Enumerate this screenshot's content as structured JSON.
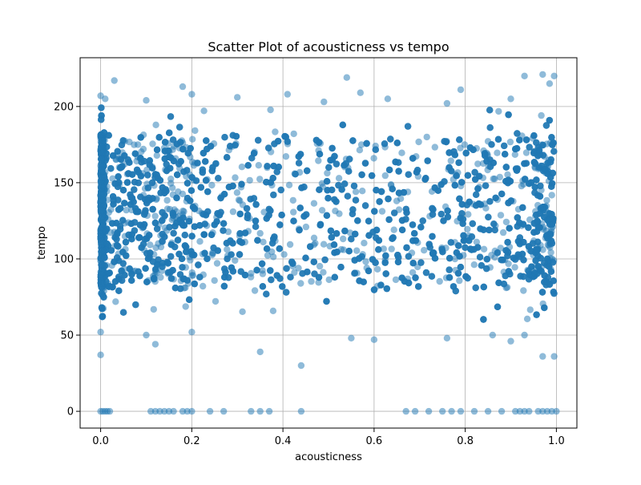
{
  "chart_data": {
    "type": "scatter",
    "title": "Scatter Plot of acousticness vs tempo",
    "xlabel": "acousticness",
    "ylabel": "tempo",
    "xlim": [
      -0.045,
      1.045
    ],
    "ylim": [
      -11,
      232
    ],
    "xticks": [
      0.0,
      0.2,
      0.4,
      0.6,
      0.8,
      1.0
    ],
    "xtick_labels": [
      "0.0",
      "0.2",
      "0.4",
      "0.6",
      "0.8",
      "1.0"
    ],
    "yticks": [
      0,
      50,
      100,
      150,
      200
    ],
    "ytick_labels": [
      "0",
      "50",
      "100",
      "150",
      "200"
    ],
    "grid": true,
    "marker_color": "#1f77b4",
    "marker_alpha": 0.5,
    "series": [
      {
        "points": [
          [
            0.0,
            0
          ],
          [
            0.005,
            0
          ],
          [
            0.01,
            0
          ],
          [
            0.015,
            0
          ],
          [
            0.02,
            0
          ],
          [
            0.11,
            0
          ],
          [
            0.12,
            0
          ],
          [
            0.13,
            0
          ],
          [
            0.14,
            0
          ],
          [
            0.15,
            0
          ],
          [
            0.16,
            0
          ],
          [
            0.18,
            0
          ],
          [
            0.19,
            0
          ],
          [
            0.2,
            0
          ],
          [
            0.24,
            0
          ],
          [
            0.27,
            0
          ],
          [
            0.33,
            0
          ],
          [
            0.35,
            0
          ],
          [
            0.37,
            0
          ],
          [
            0.44,
            0
          ],
          [
            0.67,
            0
          ],
          [
            0.69,
            0
          ],
          [
            0.72,
            0
          ],
          [
            0.75,
            0
          ],
          [
            0.77,
            0
          ],
          [
            0.79,
            0
          ],
          [
            0.82,
            0
          ],
          [
            0.85,
            0
          ],
          [
            0.88,
            0
          ],
          [
            0.91,
            0
          ],
          [
            0.92,
            0
          ],
          [
            0.93,
            0
          ],
          [
            0.94,
            0
          ],
          [
            0.96,
            0
          ],
          [
            0.97,
            0
          ],
          [
            0.98,
            0
          ],
          [
            0.99,
            0
          ],
          [
            1.0,
            0
          ],
          [
            0.0,
            37
          ],
          [
            0.12,
            44
          ],
          [
            0.44,
            30
          ],
          [
            0.35,
            39
          ],
          [
            0.55,
            48
          ],
          [
            0.6,
            47
          ],
          [
            0.76,
            48
          ],
          [
            0.97,
            36
          ],
          [
            0.995,
            36
          ],
          [
            0.0,
            52
          ],
          [
            0.1,
            50
          ],
          [
            0.2,
            52
          ],
          [
            0.86,
            50
          ],
          [
            0.9,
            46
          ],
          [
            0.93,
            50
          ],
          [
            0.03,
            217
          ],
          [
            0.18,
            213
          ],
          [
            0.2,
            208
          ],
          [
            0.41,
            208
          ],
          [
            0.54,
            219
          ],
          [
            0.57,
            209
          ],
          [
            0.79,
            211
          ],
          [
            0.93,
            220
          ],
          [
            0.97,
            221
          ],
          [
            0.985,
            215
          ],
          [
            0.995,
            220
          ],
          [
            0.0,
            207
          ],
          [
            0.01,
            205
          ],
          [
            0.1,
            204
          ],
          [
            0.63,
            205
          ],
          [
            0.9,
            205
          ],
          [
            0.3,
            206
          ],
          [
            0.49,
            203
          ],
          [
            0.76,
            202
          ]
        ]
      }
    ],
    "bulk_region_note_free": true
  }
}
